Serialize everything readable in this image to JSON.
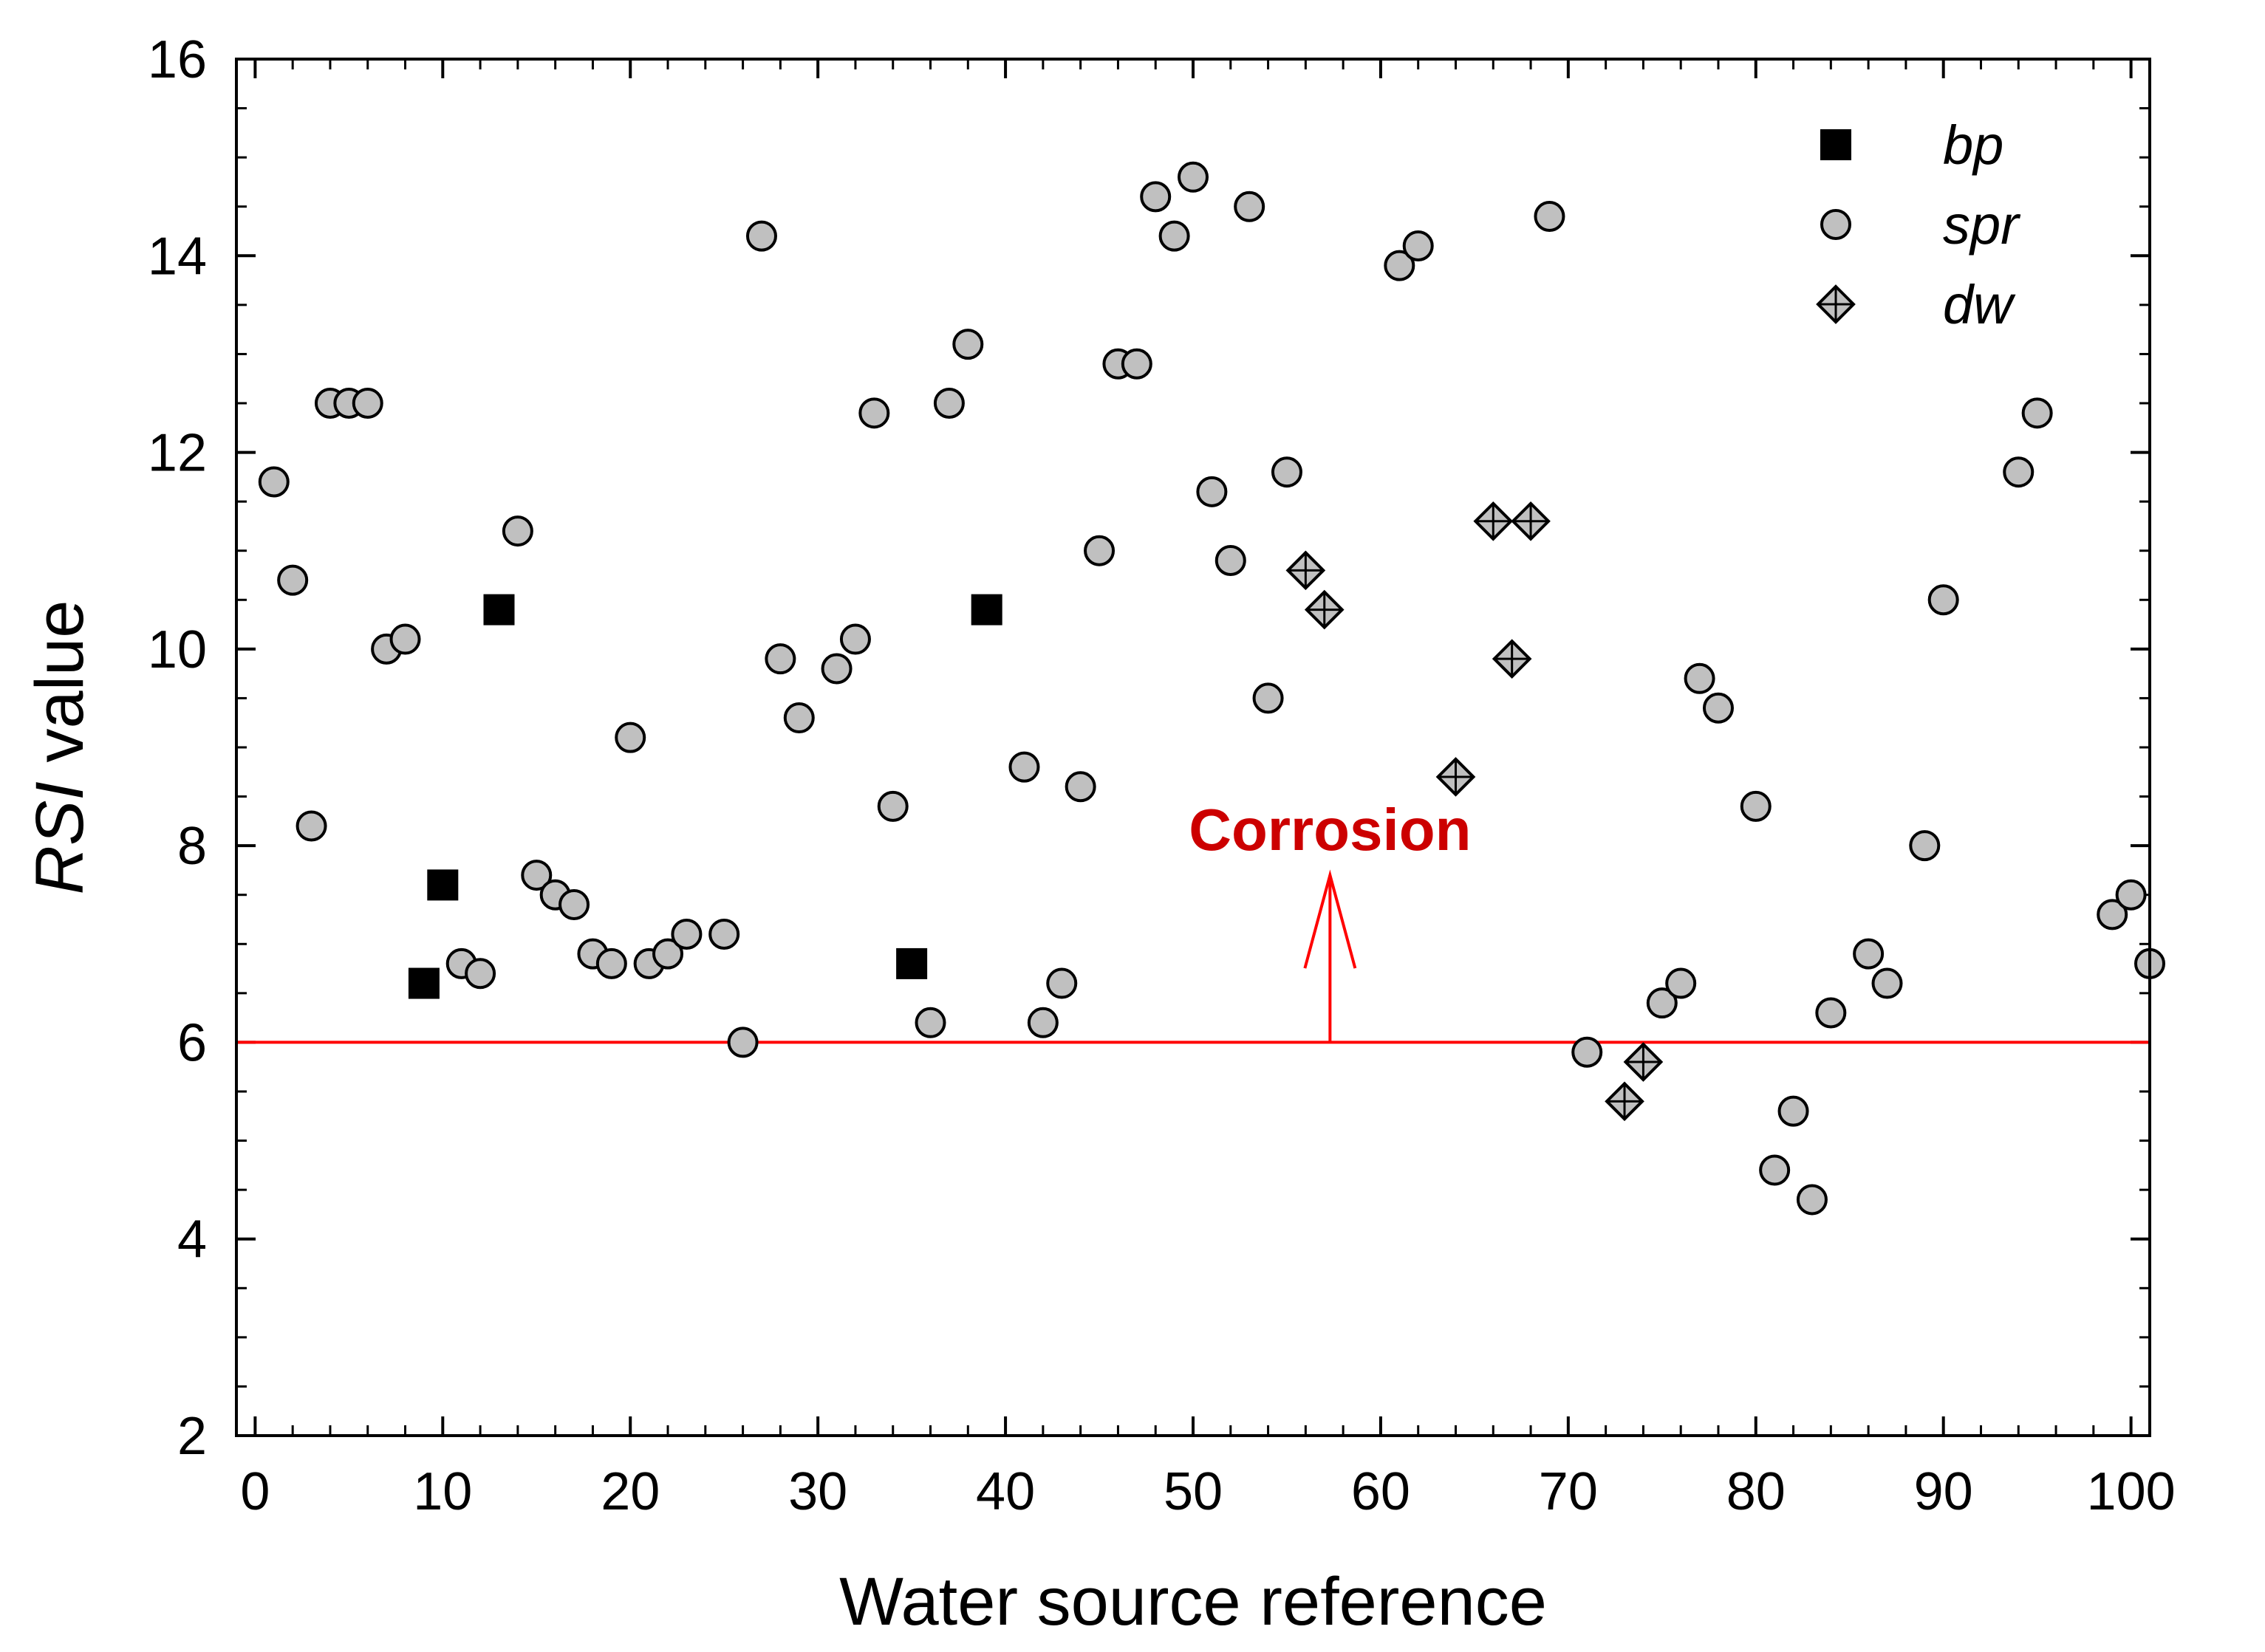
{
  "chart_data": {
    "type": "scatter",
    "title": "",
    "xlabel": "Water source reference",
    "ylabel_italic": "RSI",
    "ylabel_rest": " value",
    "xlim": [
      -1,
      101
    ],
    "ylim": [
      2,
      16
    ],
    "xticks": [
      0,
      10,
      20,
      30,
      40,
      50,
      60,
      70,
      80,
      90,
      100
    ],
    "yticks": [
      2,
      4,
      6,
      8,
      10,
      12,
      14,
      16
    ],
    "x_minor_step": 2,
    "y_minor_step": 0.5,
    "grid": false,
    "legend_position": "top-right",
    "series": [
      {
        "name": "bp",
        "marker": "square",
        "color": "#000000",
        "points": [
          [
            9,
            6.6
          ],
          [
            10,
            7.6
          ],
          [
            13,
            10.4
          ],
          [
            35,
            6.8
          ],
          [
            39,
            10.4
          ]
        ]
      },
      {
        "name": "spr",
        "marker": "circle",
        "color": "#c0c0c0",
        "points": [
          [
            1,
            11.7
          ],
          [
            2,
            10.7
          ],
          [
            3,
            8.2
          ],
          [
            4,
            12.5
          ],
          [
            5,
            12.5
          ],
          [
            6,
            12.5
          ],
          [
            7,
            10.0
          ],
          [
            8,
            10.1
          ],
          [
            11,
            6.8
          ],
          [
            12,
            6.7
          ],
          [
            14,
            11.2
          ],
          [
            15,
            7.7
          ],
          [
            16,
            7.5
          ],
          [
            17,
            7.4
          ],
          [
            18,
            6.9
          ],
          [
            19,
            6.8
          ],
          [
            20,
            9.1
          ],
          [
            21,
            6.8
          ],
          [
            22,
            6.9
          ],
          [
            23,
            7.1
          ],
          [
            25,
            7.1
          ],
          [
            26,
            6.0
          ],
          [
            27,
            14.2
          ],
          [
            28,
            9.9
          ],
          [
            29,
            9.3
          ],
          [
            31,
            9.8
          ],
          [
            32,
            10.1
          ],
          [
            33,
            12.4
          ],
          [
            34,
            8.4
          ],
          [
            36,
            6.2
          ],
          [
            37,
            12.5
          ],
          [
            38,
            13.1
          ],
          [
            41,
            8.8
          ],
          [
            42,
            6.2
          ],
          [
            43,
            6.6
          ],
          [
            44,
            8.6
          ],
          [
            45,
            11.0
          ],
          [
            46,
            12.9
          ],
          [
            47,
            12.9
          ],
          [
            48,
            14.6
          ],
          [
            49,
            14.2
          ],
          [
            50,
            14.8
          ],
          [
            51,
            11.6
          ],
          [
            52,
            10.9
          ],
          [
            53,
            14.5
          ],
          [
            54,
            9.5
          ],
          [
            55,
            11.8
          ],
          [
            61,
            13.9
          ],
          [
            62,
            14.1
          ],
          [
            69,
            14.4
          ],
          [
            71,
            5.9
          ],
          [
            75,
            6.4
          ],
          [
            76,
            6.6
          ],
          [
            77,
            9.7
          ],
          [
            78,
            9.4
          ],
          [
            80,
            8.4
          ],
          [
            81,
            4.7
          ],
          [
            82,
            5.3
          ],
          [
            83,
            4.4
          ],
          [
            84,
            6.3
          ],
          [
            86,
            6.9
          ],
          [
            87,
            6.6
          ],
          [
            89,
            8.0
          ],
          [
            90,
            10.5
          ],
          [
            94,
            11.8
          ],
          [
            95,
            12.4
          ],
          [
            99,
            7.3
          ],
          [
            100,
            7.5
          ],
          [
            101,
            6.8
          ]
        ]
      },
      {
        "name": "dw",
        "marker": "diamond-plus",
        "color": "#c0c0c0",
        "points": [
          [
            56,
            10.8
          ],
          [
            57,
            10.4
          ],
          [
            64,
            8.7
          ],
          [
            66,
            11.3
          ],
          [
            67,
            9.9
          ],
          [
            68,
            11.3
          ],
          [
            73,
            5.4
          ],
          [
            74,
            5.8
          ]
        ]
      }
    ],
    "threshold": {
      "y": 6,
      "color": "#ff0000"
    },
    "annotation": {
      "text": "Corrosion",
      "color": "#cc0000",
      "arrow_x": 57.3,
      "arrow_from_y": 6,
      "arrow_to_y": 7.7
    }
  }
}
